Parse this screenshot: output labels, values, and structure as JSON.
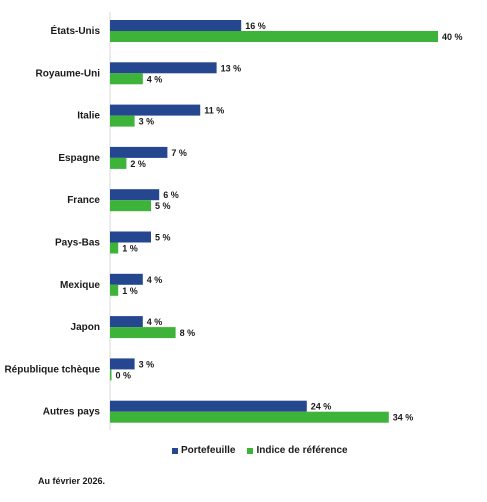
{
  "chart_data": {
    "type": "bar",
    "orientation": "horizontal",
    "categories": [
      "États-Unis",
      "Royaume-Uni",
      "Italie",
      "Espagne",
      "France",
      "Pays-Bas",
      "Mexique",
      "Japon",
      "République tchèque",
      "Autres pays"
    ],
    "series": [
      {
        "name": "Portefeuille",
        "color": "#24478f",
        "values": [
          16,
          13,
          11,
          7,
          6,
          5,
          4,
          4,
          3,
          24
        ],
        "labels": [
          "16 %",
          "13 %",
          "11 %",
          "7 %",
          "6 %",
          "5 %",
          "4 %",
          "4 %",
          "3 %",
          "24 %"
        ]
      },
      {
        "name": "Indice de référence",
        "color": "#3db33a",
        "values": [
          40,
          4,
          3,
          2,
          5,
          1,
          1,
          8,
          0,
          34
        ],
        "labels": [
          "40 %",
          "4 %",
          "3 %",
          "2 %",
          "5 %",
          "1 %",
          "1 %",
          "8 %",
          "0 %",
          "34 %"
        ]
      }
    ],
    "xlim": [
      0,
      40
    ],
    "legend_position": "bottom",
    "grid": false
  },
  "footnote": "Au février 2026."
}
